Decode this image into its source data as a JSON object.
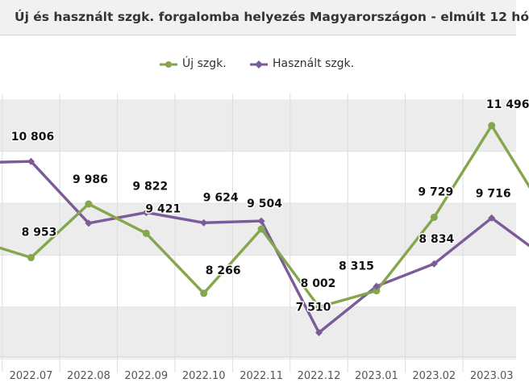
{
  "chart_data": {
    "type": "line",
    "title": "Új és használt szgk. forgalomba helyezés Magyarországon - elmúlt 12 hó",
    "categories": [
      "2022.07",
      "2022.08",
      "2022.09",
      "2022.10",
      "2022.11",
      "2022.12",
      "2023.01",
      "2023.02",
      "2023.03"
    ],
    "series": [
      {
        "name": "Új szgk.",
        "color": "#84a64c",
        "values": [
          8953,
          9986,
          9421,
          8266,
          9504,
          8002,
          8315,
          9729,
          11496
        ],
        "labels": [
          "8 953",
          "9 986",
          "9 421",
          "8 266",
          "9 504",
          "8 002",
          "8 315",
          "9 729",
          "11 496"
        ]
      },
      {
        "name": "Használt szgk.",
        "color": "#7b5b99",
        "values": [
          10806,
          9616,
          9822,
          9624,
          9658,
          7510,
          8400,
          8834,
          9716
        ],
        "labels": [
          "10 806",
          "",
          "9 822",
          "9 624",
          "",
          "7 510",
          "",
          "8 834",
          "9 716"
        ]
      }
    ],
    "partial_left": {
      "Új szgk.": 9300,
      "Használt szgk.": 10780
    },
    "partial_right": {
      "Új szgk.": 9700,
      "Használt szgk.": 8900
    },
    "ylim": [
      7000,
      12000
    ],
    "xlabel": "",
    "ylabel": "",
    "grid": true,
    "legend_position": "top-center"
  }
}
